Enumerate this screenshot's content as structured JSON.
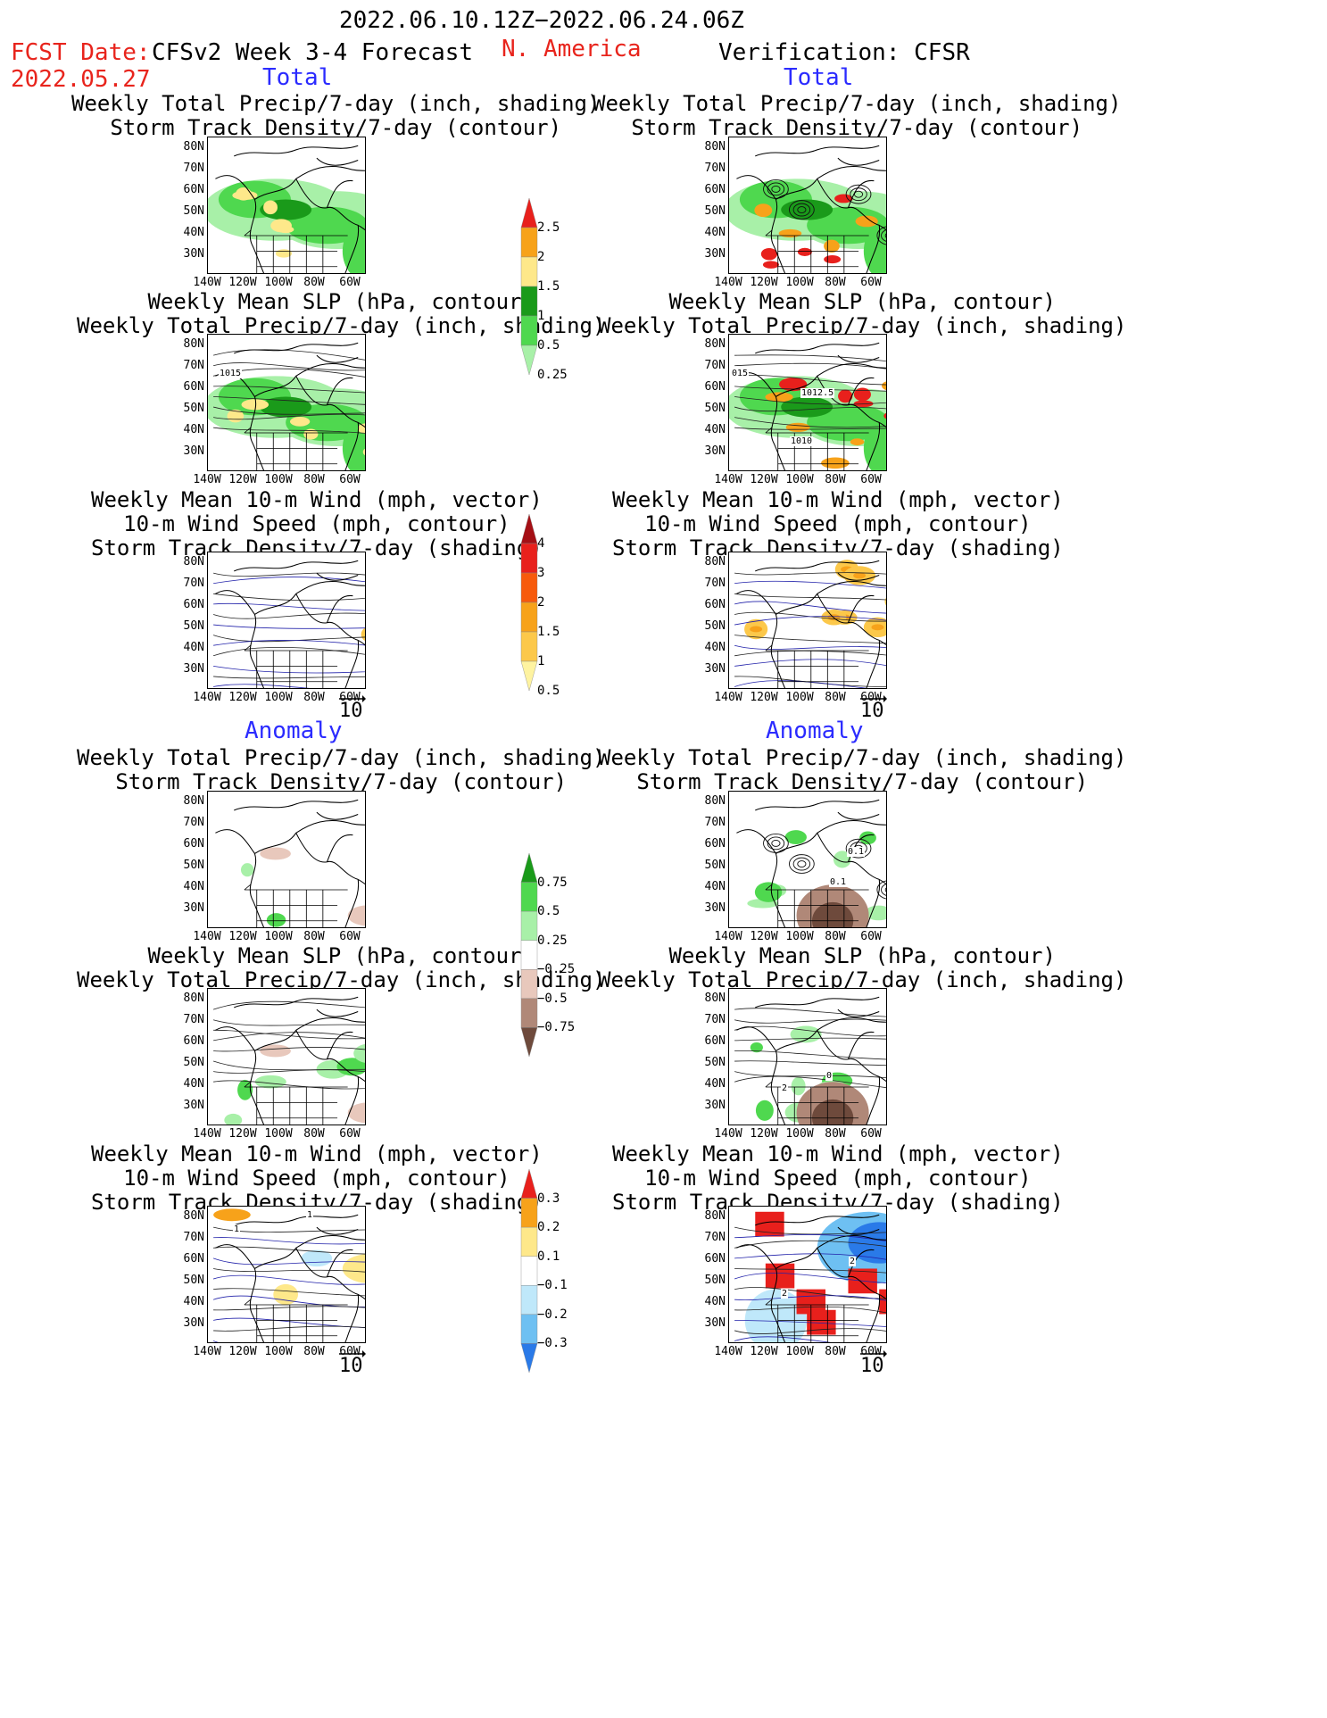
{
  "header": {
    "date_range": "2022.06.10.12Z−2022.06.24.06Z",
    "fcst_label": "FCST Date:",
    "fcst_date": "2022.05.27",
    "model": "CFSv2 Week 3-4 Forecast",
    "region": "N. America",
    "verification": "Verification: CFSR"
  },
  "sections": {
    "total": "Total",
    "anomaly": "Anomaly"
  },
  "panel_titles": {
    "precip_storm": "Weekly Total Precip/7-day (inch, shading)\nStorm Track Density/7-day (contour)",
    "slp_precip": "Weekly Mean SLP (hPa, contour)\nWeekly Total Precip/7-day (inch, shading)",
    "wind_storm": "Weekly Mean 10-m Wind (mph, vector)\n10-m Wind Speed (mph, contour)\nStorm Track Density/7-day (shading)"
  },
  "axes": {
    "lat_ticks": [
      "80N",
      "70N",
      "60N",
      "50N",
      "40N",
      "30N"
    ],
    "lon_ticks": [
      "140W",
      "120W",
      "100W",
      "80W",
      "60W"
    ]
  },
  "vector_ref": "10",
  "contour_labels": {
    "fcst_slp": "1015",
    "cfsr_slp_a": "015",
    "cfsr_slp_b": "1012.5",
    "cfsr_slp_c": "1010",
    "cfsr_anom_a": "0.1",
    "cfsr_anom_b": "0.1",
    "cfsr_slp_anom_a": "0",
    "cfsr_slp_anom_b": "2",
    "cfsr_wind_a": "2",
    "cfsr_wind_b": "2",
    "fcst_wind_a": "1",
    "fcst_wind_b": "1"
  },
  "colorbars": {
    "precip_total": {
      "labels": [
        "2.5",
        "2",
        "1.5",
        "1",
        "0.5",
        "0.25"
      ],
      "colors": [
        "#e8201c",
        "#f7a21a",
        "#fee88a",
        "#1a9a1a",
        "#4fd84f",
        "#a8f0a8"
      ]
    },
    "storm_total": {
      "labels": [
        "4",
        "3",
        "2",
        "1.5",
        "1",
        "0.5"
      ],
      "colors": [
        "#a50f15",
        "#e8201c",
        "#f75a0c",
        "#f7a21a",
        "#fcc84a",
        "#fef3a0"
      ]
    },
    "precip_anom": {
      "labels": [
        "0.75",
        "0.5",
        "0.25",
        "−0.25",
        "−0.5",
        "−0.75"
      ],
      "colors": [
        "#1a9a1a",
        "#4fd84f",
        "#a8f0a8",
        "#ffffff",
        "#e8c8bc",
        "#b08878",
        "#6e4a3c"
      ]
    },
    "storm_anom": {
      "labels": [
        "0.3",
        "0.2",
        "0.1",
        "−0.1",
        "−0.2",
        "−0.3"
      ],
      "colors": [
        "#e8201c",
        "#f7a21a",
        "#fee88a",
        "#ffffff",
        "#bfe8fa",
        "#6ec0f2",
        "#2a7ae8"
      ]
    }
  },
  "colors": {
    "title_red": "#e8241c",
    "title_blue": "#2b2bff"
  }
}
